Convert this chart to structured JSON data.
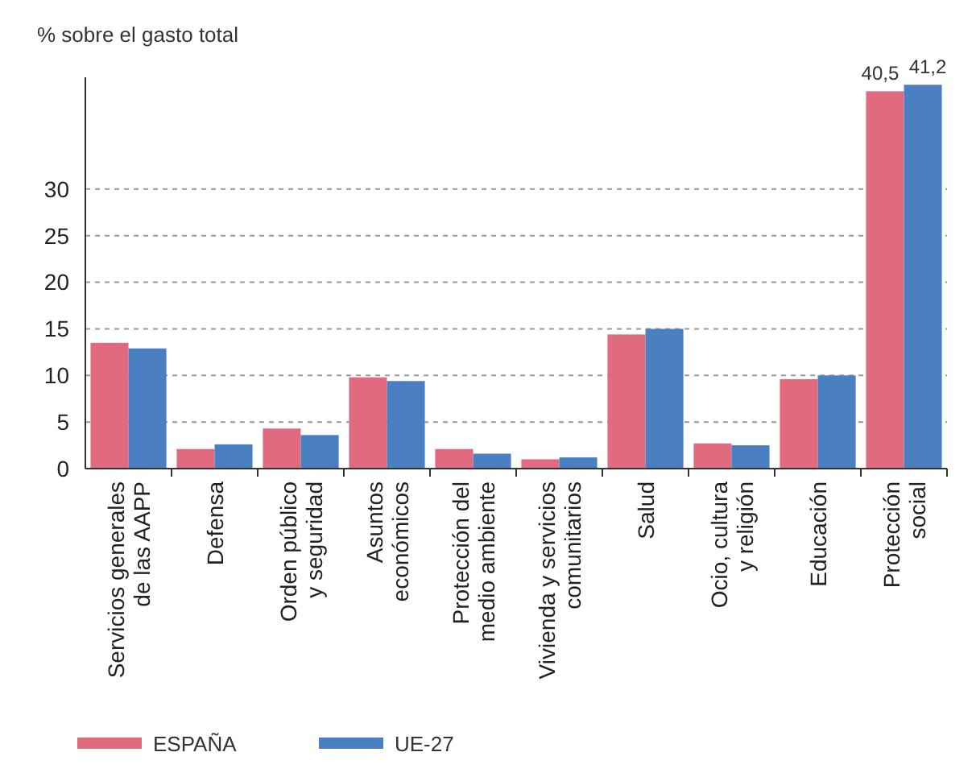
{
  "chart_data": {
    "type": "bar",
    "ylabel": "% sobre el gasto total",
    "categories": [
      "Servicios generales\nde las AAPP",
      "Defensa",
      "Orden público\ny seguridad",
      "Asuntos\neconómicos",
      "Protección del\nmedio ambiente",
      "Vivienda y servicios\ncomunitarios",
      "Salud",
      "Ocio, cultura\ny religión",
      "Educación",
      "Protección\nsocial"
    ],
    "series": [
      {
        "name": "ESPAÑA",
        "color": "#e06b7e",
        "values": [
          13.5,
          2.1,
          4.3,
          9.8,
          2.1,
          1.0,
          14.4,
          2.7,
          9.6,
          40.5
        ],
        "value_labels": [
          null,
          null,
          null,
          null,
          null,
          null,
          null,
          null,
          null,
          "40,5"
        ]
      },
      {
        "name": "UE-27",
        "color": "#4a7fc1",
        "values": [
          12.9,
          2.6,
          3.6,
          9.4,
          1.6,
          1.2,
          15.0,
          2.5,
          10.0,
          41.2
        ],
        "value_labels": [
          null,
          null,
          null,
          null,
          null,
          null,
          null,
          null,
          null,
          "41,2"
        ]
      }
    ],
    "ylim": [
      0,
      42
    ],
    "yticks": [
      0,
      5,
      10,
      15,
      20,
      25,
      30
    ],
    "grid": "y",
    "legend": "bottom"
  }
}
